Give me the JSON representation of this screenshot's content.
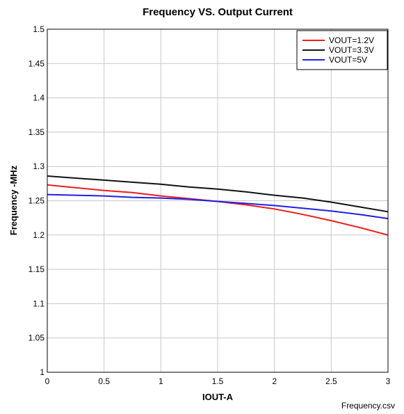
{
  "chart_data": {
    "type": "line",
    "title": "Frequency VS. Output Current",
    "xlabel": "IOUT-A",
    "ylabel": "Frequency -MHz",
    "xlim": [
      0,
      3
    ],
    "ylim": [
      1,
      1.5
    ],
    "x_ticks": [
      "0",
      "0.5",
      "1",
      "1.5",
      "2",
      "2.5",
      "3"
    ],
    "y_ticks": [
      "1",
      "1.05",
      "1.1",
      "1.15",
      "1.2",
      "1.25",
      "1.3",
      "1.35",
      "1.4",
      "1.45",
      "1.5"
    ],
    "grid": true,
    "legend_position": "top-right",
    "source_label": "Frequency.csv",
    "series": [
      {
        "name": "VOUT=1.2V",
        "color": "#ee1c1c",
        "x": [
          0,
          0.25,
          0.5,
          0.75,
          1.0,
          1.25,
          1.5,
          1.75,
          2.0,
          2.25,
          2.5,
          2.75,
          3.0
        ],
        "y": [
          1.273,
          1.269,
          1.265,
          1.262,
          1.257,
          1.253,
          1.249,
          1.244,
          1.238,
          1.23,
          1.221,
          1.211,
          1.2
        ]
      },
      {
        "name": "VOUT=3.3V",
        "color": "#111111",
        "x": [
          0,
          0.25,
          0.5,
          0.75,
          1.0,
          1.25,
          1.5,
          1.75,
          2.0,
          2.25,
          2.5,
          2.75,
          3.0
        ],
        "y": [
          1.286,
          1.283,
          1.28,
          1.277,
          1.274,
          1.27,
          1.267,
          1.263,
          1.258,
          1.254,
          1.248,
          1.241,
          1.234
        ]
      },
      {
        "name": "VOUT=5V",
        "color": "#1f1fe6",
        "x": [
          0,
          0.25,
          0.5,
          0.75,
          1.0,
          1.25,
          1.5,
          1.75,
          2.0,
          2.25,
          2.5,
          2.75,
          3.0
        ],
        "y": [
          1.259,
          1.258,
          1.257,
          1.255,
          1.254,
          1.252,
          1.249,
          1.246,
          1.243,
          1.239,
          1.235,
          1.23,
          1.224
        ]
      }
    ]
  }
}
